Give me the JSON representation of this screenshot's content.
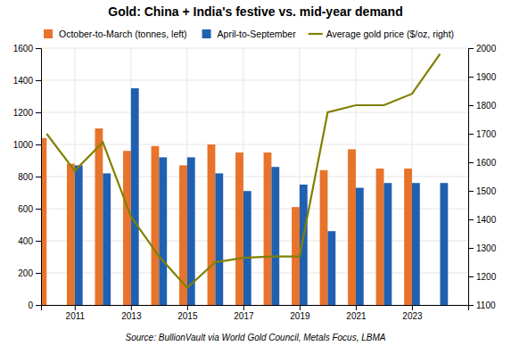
{
  "chart_data": {
    "type": "bar",
    "title": "Gold: China + India's festive vs. mid-year demand",
    "source": "Source: BullionVault via World Gold Council, Metals Focus, LBMA",
    "x": [
      2010,
      2011,
      2012,
      2013,
      2014,
      2015,
      2016,
      2017,
      2018,
      2019,
      2020,
      2021,
      2022,
      2023,
      2024
    ],
    "series": [
      {
        "name": "October-to-March (tonnes, left)",
        "type": "bar",
        "color": "#E8732A",
        "values": [
          1040,
          880,
          1100,
          960,
          990,
          870,
          1000,
          950,
          950,
          610,
          840,
          970,
          850,
          850,
          null
        ]
      },
      {
        "name": "April-to-September",
        "type": "bar",
        "color": "#2060B0",
        "values": [
          null,
          870,
          820,
          1350,
          920,
          920,
          820,
          710,
          860,
          750,
          460,
          730,
          760,
          760,
          760
        ]
      },
      {
        "name": "Average gold price ($/oz, right)",
        "type": "line",
        "color": "#808000",
        "axis": "y2",
        "values": [
          1700,
          1570,
          1670,
          1410,
          1270,
          1160,
          1250,
          1265,
          1270,
          1270,
          1775,
          1800,
          1800,
          1840,
          1980
        ]
      }
    ],
    "xlim": [
      2009.8,
      2025.0
    ],
    "xticks": [
      2011,
      2013,
      2015,
      2017,
      2019,
      2021,
      2023
    ],
    "ylim": [
      0,
      1600
    ],
    "yticks": [
      0,
      200,
      400,
      600,
      800,
      1000,
      1200,
      1400,
      1600
    ],
    "y2lim": [
      1100,
      2000
    ],
    "y2ticks": [
      1100,
      1200,
      1300,
      1400,
      1500,
      1600,
      1700,
      1800,
      1900,
      2000
    ],
    "grid": true,
    "legend": "upper left"
  }
}
